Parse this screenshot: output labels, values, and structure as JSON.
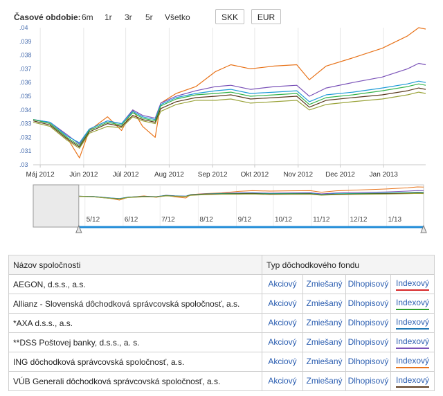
{
  "toolbar": {
    "period_label": "Časové obdobie:",
    "periods": [
      "6m",
      "1r",
      "3r",
      "5r",
      "Všetko"
    ],
    "currencies": [
      "SKK",
      "EUR"
    ],
    "active_currency": "EUR"
  },
  "chart_data": [
    {
      "type": "line",
      "title": "",
      "xlabel": "",
      "ylabel": "",
      "x_range": [
        "2012-04-26",
        "2013-01-31"
      ],
      "x_tick_labels": [
        "Máj 2012",
        "Jún 2012",
        "Júl 2012",
        "Aug 2012",
        "Sep 2012",
        "Okt 2012",
        "Nov 2012",
        "Dec 2012",
        "Jan 2013"
      ],
      "x_tick_dates": [
        "2012-05-01",
        "2012-06-01",
        "2012-07-01",
        "2012-08-01",
        "2012-09-01",
        "2012-10-01",
        "2012-11-01",
        "2012-12-01",
        "2013-01-01"
      ],
      "ylim": [
        0.03,
        0.04
      ],
      "y_ticks": [
        0.03,
        0.031,
        0.032,
        0.033,
        0.034,
        0.035,
        0.036,
        0.037,
        0.038,
        0.039,
        0.04
      ],
      "y_tick_labels": [
        ".03",
        ".031",
        ".032",
        ".033",
        ".034",
        ".035",
        ".036",
        ".037",
        ".038",
        ".039",
        ".04"
      ],
      "grid": "vertical",
      "series": [
        {
          "color": "#e8731a",
          "x": [
            "2012-04-26",
            "2012-05-08",
            "2012-05-20",
            "2012-05-29",
            "2012-06-05",
            "2012-06-18",
            "2012-06-28",
            "2012-07-06",
            "2012-07-13",
            "2012-07-22",
            "2012-07-26",
            "2012-08-06",
            "2012-08-20",
            "2012-09-03",
            "2012-09-14",
            "2012-09-28",
            "2012-10-15",
            "2012-10-31",
            "2012-11-09",
            "2012-11-21",
            "2012-12-10",
            "2012-12-31",
            "2013-01-18",
            "2013-01-26",
            "2013-01-31"
          ],
          "values": [
            0.0333,
            0.033,
            0.032,
            0.0305,
            0.0325,
            0.0335,
            0.0325,
            0.034,
            0.0328,
            0.032,
            0.0345,
            0.0352,
            0.0357,
            0.0368,
            0.0373,
            0.037,
            0.0372,
            0.0373,
            0.0362,
            0.0372,
            0.0378,
            0.0385,
            0.0394,
            0.04,
            0.0399
          ]
        },
        {
          "color": "#7a52b8",
          "x": [
            "2012-04-26",
            "2012-05-08",
            "2012-05-20",
            "2012-05-29",
            "2012-06-05",
            "2012-06-18",
            "2012-06-28",
            "2012-07-06",
            "2012-07-13",
            "2012-07-22",
            "2012-07-26",
            "2012-08-06",
            "2012-08-20",
            "2012-09-03",
            "2012-09-14",
            "2012-09-28",
            "2012-10-15",
            "2012-10-31",
            "2012-11-09",
            "2012-11-21",
            "2012-12-10",
            "2012-12-31",
            "2013-01-18",
            "2013-01-26",
            "2013-01-31"
          ],
          "values": [
            0.0333,
            0.0331,
            0.0322,
            0.0315,
            0.0326,
            0.0332,
            0.033,
            0.034,
            0.0336,
            0.0334,
            0.0345,
            0.035,
            0.0354,
            0.0357,
            0.0358,
            0.0355,
            0.0357,
            0.0358,
            0.035,
            0.0356,
            0.036,
            0.0364,
            0.037,
            0.0374,
            0.0373
          ]
        },
        {
          "color": "#1e9bd7",
          "x": [
            "2012-04-26",
            "2012-05-08",
            "2012-05-20",
            "2012-05-29",
            "2012-06-05",
            "2012-06-18",
            "2012-06-28",
            "2012-07-06",
            "2012-07-13",
            "2012-07-22",
            "2012-07-26",
            "2012-08-06",
            "2012-08-20",
            "2012-09-03",
            "2012-09-14",
            "2012-09-28",
            "2012-10-15",
            "2012-10-31",
            "2012-11-09",
            "2012-11-21",
            "2012-12-10",
            "2012-12-31",
            "2013-01-18",
            "2013-01-26",
            "2013-01-31"
          ],
          "values": [
            0.0333,
            0.0331,
            0.0321,
            0.0316,
            0.0326,
            0.0332,
            0.033,
            0.0339,
            0.0335,
            0.0333,
            0.0344,
            0.0349,
            0.0352,
            0.0354,
            0.0355,
            0.0352,
            0.0353,
            0.0354,
            0.0346,
            0.0351,
            0.0353,
            0.0356,
            0.0359,
            0.0361,
            0.036
          ]
        },
        {
          "color": "#34b34a",
          "x": [
            "2012-04-26",
            "2012-05-08",
            "2012-05-20",
            "2012-05-29",
            "2012-06-05",
            "2012-06-18",
            "2012-06-28",
            "2012-07-06",
            "2012-07-13",
            "2012-07-22",
            "2012-07-26",
            "2012-08-06",
            "2012-08-20",
            "2012-09-03",
            "2012-09-14",
            "2012-09-28",
            "2012-10-15",
            "2012-10-31",
            "2012-11-09",
            "2012-11-21",
            "2012-12-10",
            "2012-12-31",
            "2013-01-18",
            "2013-01-26",
            "2013-01-31"
          ],
          "values": [
            0.0333,
            0.033,
            0.032,
            0.0314,
            0.0325,
            0.0331,
            0.0329,
            0.0338,
            0.0334,
            0.0332,
            0.0343,
            0.0348,
            0.0351,
            0.0352,
            0.0353,
            0.035,
            0.0351,
            0.0352,
            0.0344,
            0.0349,
            0.0351,
            0.0354,
            0.0357,
            0.0359,
            0.0358
          ]
        },
        {
          "color": "#5a3a1e",
          "x": [
            "2012-04-26",
            "2012-05-08",
            "2012-05-20",
            "2012-05-29",
            "2012-06-05",
            "2012-06-18",
            "2012-06-28",
            "2012-07-06",
            "2012-07-13",
            "2012-07-22",
            "2012-07-26",
            "2012-08-06",
            "2012-08-20",
            "2012-09-03",
            "2012-09-14",
            "2012-09-28",
            "2012-10-15",
            "2012-10-31",
            "2012-11-09",
            "2012-11-21",
            "2012-12-10",
            "2012-12-31",
            "2013-01-18",
            "2013-01-26",
            "2013-01-31"
          ],
          "values": [
            0.0332,
            0.0329,
            0.0319,
            0.0313,
            0.0324,
            0.033,
            0.0328,
            0.0336,
            0.0333,
            0.0331,
            0.0341,
            0.0346,
            0.0349,
            0.035,
            0.0351,
            0.0348,
            0.0349,
            0.035,
            0.0342,
            0.0347,
            0.0349,
            0.0351,
            0.0354,
            0.0356,
            0.0355
          ]
        },
        {
          "color": "#9aa33a",
          "x": [
            "2012-04-26",
            "2012-05-08",
            "2012-05-20",
            "2012-05-29",
            "2012-06-05",
            "2012-06-18",
            "2012-06-28",
            "2012-07-06",
            "2012-07-13",
            "2012-07-22",
            "2012-07-26",
            "2012-08-06",
            "2012-08-20",
            "2012-09-03",
            "2012-09-14",
            "2012-09-28",
            "2012-10-15",
            "2012-10-31",
            "2012-11-09",
            "2012-11-21",
            "2012-12-10",
            "2012-12-31",
            "2013-01-18",
            "2013-01-26",
            "2013-01-31"
          ],
          "values": [
            0.0331,
            0.0328,
            0.0318,
            0.0312,
            0.0323,
            0.0328,
            0.0327,
            0.0335,
            0.0332,
            0.033,
            0.0339,
            0.0344,
            0.0347,
            0.0347,
            0.0348,
            0.0345,
            0.0346,
            0.0347,
            0.034,
            0.0344,
            0.0346,
            0.0348,
            0.0351,
            0.0353,
            0.0352
          ]
        }
      ]
    },
    {
      "type": "line",
      "title": "",
      "x_range": [
        "2012-03-20",
        "2013-01-31"
      ],
      "x_tick_labels": [
        "5/12",
        "6/12",
        "7/12",
        "8/12",
        "9/12",
        "10/12",
        "11/12",
        "12/12",
        "1/13"
      ],
      "x_tick_dates": [
        "2012-05-01",
        "2012-06-01",
        "2012-07-01",
        "2012-08-01",
        "2012-09-01",
        "2012-10-01",
        "2012-11-01",
        "2012-12-01",
        "2013-01-01"
      ],
      "selected_range": [
        "2012-04-26",
        "2013-01-31"
      ]
    }
  ],
  "table": {
    "header_name": "Názov spoločnosti",
    "header_type": "Typ dôchodkového fondu",
    "rows": [
      {
        "name": "AEGON, d.s.s., a.s.",
        "index_color": "#d62728"
      },
      {
        "name": "Allianz - Slovenská dôchodková správcovská spoločnosť, a.s.",
        "index_color": "#2ca02c"
      },
      {
        "name": "*AXA d.s.s., a.s.",
        "index_color": "#1f77b4"
      },
      {
        "name": "**DSS Poštovej banky, d.s.s., a. s.",
        "index_color": "#7a52b8"
      },
      {
        "name": "ING dôchodková správcovská spoločnosť, a.s.",
        "index_color": "#e8731a"
      },
      {
        "name": "VÚB Generali dôchodková správcovská spoločnosť, a.s.",
        "index_color": "#5a3a1e"
      }
    ],
    "type_labels": [
      "Akciový",
      "Zmiešaný",
      "Dlhopisový",
      "Indexový"
    ]
  }
}
